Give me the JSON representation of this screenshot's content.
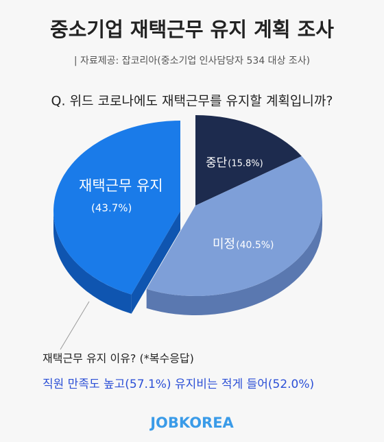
{
  "chart_data": {
    "type": "pie",
    "title": "중소기업 재택근무 유지 계획 조사",
    "subtitle": "| 자료제공: 잡코리아(중소기업 인사담당자 534 대상 조사)",
    "question": "Q. 위드 코로나에도 재택근무를 유지할 계획입니까?",
    "categories": [
      "중단",
      "미정",
      "재택근무 유지"
    ],
    "values": [
      15.8,
      40.5,
      43.7
    ],
    "value_labels": [
      "(15.8%)",
      "(40.5%)",
      "(43.7%)"
    ],
    "colors": [
      "#1d2b4e",
      "#7e9fd8",
      "#1a7be9"
    ],
    "side_colors": [
      "#0f1830",
      "#5a78b0",
      "#0f55b0"
    ],
    "annotations": [
      "재택근무 유지 이유? (*복수응답)",
      "직원 만족도 높고(57.1%) 유지비는 적게 들어(52.0%)"
    ],
    "brand": "JOBKOREA"
  }
}
